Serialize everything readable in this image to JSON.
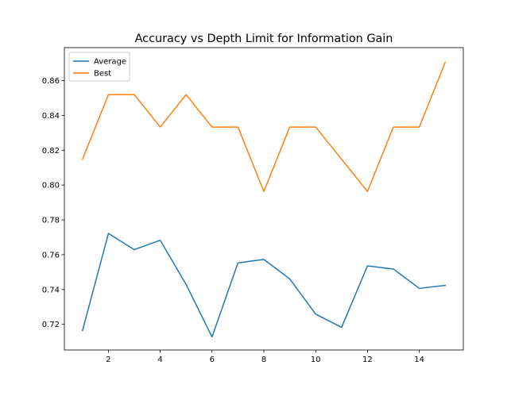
{
  "chart_data": {
    "type": "line",
    "title": "Accuracy vs Depth Limit for Information Gain",
    "xlabel": "",
    "ylabel": "",
    "xlim": [
      0.3,
      15.7
    ],
    "ylim": [
      0.7053,
      0.8789
    ],
    "xticks": [
      2,
      4,
      6,
      8,
      10,
      12,
      14
    ],
    "xtick_labels": [
      "2",
      "4",
      "6",
      "8",
      "10",
      "12",
      "14"
    ],
    "yticks": [
      0.72,
      0.74,
      0.76,
      0.78,
      0.8,
      0.82,
      0.84,
      0.86
    ],
    "ytick_labels": [
      "0.72",
      "0.74",
      "0.76",
      "0.78",
      "0.80",
      "0.82",
      "0.84",
      "0.86"
    ],
    "grid": false,
    "legend_position": "top-left",
    "x": [
      1,
      2,
      3,
      4,
      5,
      6,
      7,
      8,
      9,
      10,
      11,
      12,
      13,
      14,
      15
    ],
    "series": [
      {
        "name": "Average",
        "color": "#1f77b4",
        "values": [
          0.7165,
          0.7722,
          0.7629,
          0.7683,
          0.7429,
          0.7128,
          0.7553,
          0.7573,
          0.7461,
          0.7259,
          0.7183,
          0.7536,
          0.7518,
          0.7407,
          0.7424
        ]
      },
      {
        "name": "Best",
        "color": "#ff7f0e",
        "values": [
          0.8148,
          0.8519,
          0.8519,
          0.8333,
          0.8519,
          0.8333,
          0.8333,
          0.7963,
          0.8333,
          0.8333,
          0.8148,
          0.7963,
          0.8333,
          0.8333,
          0.8704
        ]
      }
    ]
  }
}
